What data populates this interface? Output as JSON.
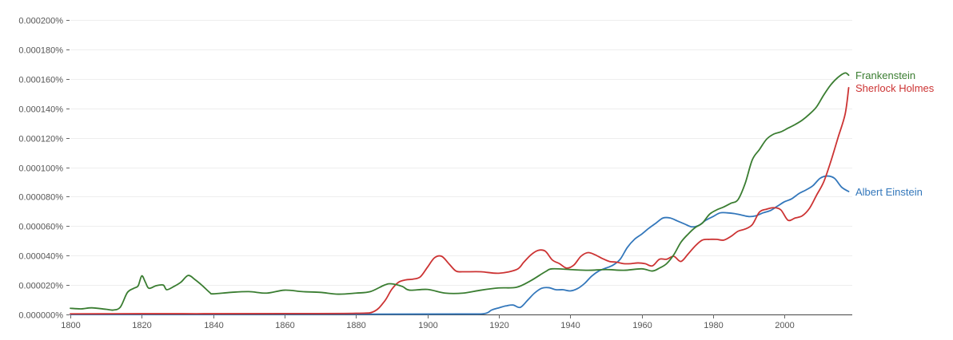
{
  "chart_data": {
    "type": "line",
    "title": "",
    "xlabel": "",
    "ylabel": "",
    "xlim": [
      1800,
      2019
    ],
    "ylim": [
      0,
      0.0002
    ],
    "grid": true,
    "legend": "line-end labels",
    "y_ticks": [
      0,
      2e-05,
      4e-05,
      6e-05,
      8e-05,
      0.0001,
      0.00012,
      0.00014,
      0.00016,
      0.00018,
      0.0002
    ],
    "y_tick_labels": [
      "0.000000%",
      "0.000020%",
      "0.000040%",
      "0.000060%",
      "0.000080%",
      "0.000100%",
      "0.000120%",
      "0.000140%",
      "0.000160%",
      "0.000180%",
      "0.000200%"
    ],
    "x_ticks": [
      1800,
      1820,
      1840,
      1860,
      1880,
      1900,
      1920,
      1940,
      1960,
      1980,
      2000
    ],
    "x_tick_labels": [
      "1800",
      "1820",
      "1840",
      "1860",
      "1880",
      "1900",
      "1920",
      "1940",
      "1960",
      "1980",
      "2000"
    ],
    "series": [
      {
        "name": "Frankenstein",
        "color": "#3a7d31",
        "x": [
          1800,
          1803,
          1806,
          1810,
          1812,
          1814,
          1816,
          1818,
          1819,
          1820,
          1821,
          1822,
          1824,
          1826,
          1827,
          1829,
          1831,
          1833,
          1835,
          1837,
          1839,
          1840,
          1845,
          1850,
          1855,
          1860,
          1865,
          1870,
          1875,
          1880,
          1884,
          1888,
          1890,
          1893,
          1895,
          1900,
          1905,
          1910,
          1915,
          1920,
          1925,
          1929,
          1933,
          1935,
          1940,
          1945,
          1950,
          1955,
          1960,
          1963,
          1965,
          1967,
          1969,
          1971,
          1973,
          1975,
          1977,
          1979,
          1981,
          1983,
          1985,
          1987,
          1989,
          1991,
          1993,
          1995,
          1997,
          1999,
          2001,
          2003,
          2005,
          2007,
          2009,
          2011,
          2013,
          2015,
          2017,
          2018
        ],
        "y": [
          4.2e-06,
          3.8e-06,
          4.5e-06,
          3.5e-06,
          3e-06,
          5e-06,
          1.5e-05,
          1.8e-05,
          1.95e-05,
          2.62e-05,
          2.2e-05,
          1.78e-05,
          1.95e-05,
          2e-05,
          1.68e-05,
          1.9e-05,
          2.2e-05,
          2.65e-05,
          2.35e-05,
          1.95e-05,
          1.5e-05,
          1.4e-05,
          1.5e-05,
          1.55e-05,
          1.45e-05,
          1.65e-05,
          1.55e-05,
          1.5e-05,
          1.38e-05,
          1.45e-05,
          1.55e-05,
          2e-05,
          2.08e-05,
          1.9e-05,
          1.65e-05,
          1.7e-05,
          1.45e-05,
          1.45e-05,
          1.65e-05,
          1.8e-05,
          1.85e-05,
          2.3e-05,
          2.9e-05,
          3.1e-05,
          3.05e-05,
          3e-05,
          3.05e-05,
          3e-05,
          3.1e-05,
          2.95e-05,
          3.15e-05,
          3.45e-05,
          4.05e-05,
          4.9e-05,
          5.45e-05,
          5.9e-05,
          6.2e-05,
          6.8e-05,
          7.1e-05,
          7.3e-05,
          7.55e-05,
          7.8e-05,
          8.9e-05,
          0.000105,
          0.000112,
          0.000119,
          0.0001225,
          0.000124,
          0.0001265,
          0.000129,
          0.000132,
          0.000136,
          0.000141,
          0.000149,
          0.000156,
          0.000161,
          0.000164,
          0.0001625
        ]
      },
      {
        "name": "Sherlock Holmes",
        "color": "#cc3333",
        "x": [
          1800,
          1820,
          1840,
          1860,
          1880,
          1885,
          1888,
          1890,
          1892,
          1894,
          1896,
          1898,
          1900,
          1902,
          1904,
          1906,
          1908,
          1910,
          1915,
          1920,
          1925,
          1927,
          1929,
          1931,
          1933,
          1935,
          1937,
          1939,
          1941,
          1943,
          1945,
          1947,
          1949,
          1951,
          1953,
          1955,
          1957,
          1959,
          1961,
          1963,
          1965,
          1967,
          1969,
          1971,
          1973,
          1975,
          1977,
          1979,
          1981,
          1983,
          1985,
          1987,
          1989,
          1991,
          1993,
          1995,
          1997,
          1999,
          2001,
          2003,
          2005,
          2007,
          2009,
          2011,
          2013,
          2015,
          2017,
          2018
        ],
        "y": [
          4e-07,
          5e-07,
          5e-07,
          6e-07,
          8e-07,
          2e-06,
          9e-06,
          1.7e-05,
          2.2e-05,
          2.35e-05,
          2.4e-05,
          2.55e-05,
          3.2e-05,
          3.85e-05,
          3.95e-05,
          3.45e-05,
          2.95e-05,
          2.9e-05,
          2.9e-05,
          2.8e-05,
          3.05e-05,
          3.55e-05,
          4.05e-05,
          4.35e-05,
          4.3e-05,
          3.7e-05,
          3.45e-05,
          3.15e-05,
          3.35e-05,
          3.95e-05,
          4.2e-05,
          4.05e-05,
          3.8e-05,
          3.6e-05,
          3.55e-05,
          3.45e-05,
          3.45e-05,
          3.5e-05,
          3.45e-05,
          3.3e-05,
          3.75e-05,
          3.75e-05,
          3.95e-05,
          3.6e-05,
          4.1e-05,
          4.65e-05,
          5.05e-05,
          5.1e-05,
          5.1e-05,
          5.05e-05,
          5.3e-05,
          5.65e-05,
          5.8e-05,
          6.1e-05,
          6.95e-05,
          7.15e-05,
          7.25e-05,
          7.1e-05,
          6.4e-05,
          6.55e-05,
          6.7e-05,
          7.2e-05,
          8.1e-05,
          9e-05,
          0.000104,
          0.00012,
          0.000136,
          0.000154
        ]
      },
      {
        "name": "Albert Einstein",
        "color": "#3377bb",
        "x": [
          1800,
          1840,
          1880,
          1910,
          1916,
          1918,
          1920,
          1922,
          1924,
          1926,
          1928,
          1930,
          1932,
          1934,
          1936,
          1938,
          1940,
          1942,
          1944,
          1946,
          1948,
          1950,
          1952,
          1954,
          1956,
          1958,
          1960,
          1962,
          1964,
          1966,
          1968,
          1970,
          1972,
          1974,
          1976,
          1978,
          1980,
          1982,
          1984,
          1986,
          1988,
          1990,
          1992,
          1994,
          1996,
          1998,
          2000,
          2002,
          2004,
          2006,
          2008,
          2010,
          2012,
          2014,
          2016,
          2018
        ],
        "y": [
          0,
          1e-07,
          2e-07,
          3e-07,
          6e-07,
          3e-06,
          4.5e-06,
          5.8e-06,
          6.4e-06,
          4.8e-06,
          9.5e-06,
          1.45e-05,
          1.78e-05,
          1.82e-05,
          1.68e-05,
          1.68e-05,
          1.6e-05,
          1.75e-05,
          2.1e-05,
          2.6e-05,
          2.95e-05,
          3.15e-05,
          3.35e-05,
          3.75e-05,
          4.55e-05,
          5.1e-05,
          5.45e-05,
          5.85e-05,
          6.2e-05,
          6.55e-05,
          6.55e-05,
          6.35e-05,
          6.15e-05,
          5.95e-05,
          6.05e-05,
          6.4e-05,
          6.65e-05,
          6.9e-05,
          6.9e-05,
          6.85e-05,
          6.75e-05,
          6.65e-05,
          6.7e-05,
          6.9e-05,
          7.05e-05,
          7.35e-05,
          7.65e-05,
          7.85e-05,
          8.2e-05,
          8.45e-05,
          8.75e-05,
          9.25e-05,
          9.4e-05,
          9.25e-05,
          8.65e-05,
          8.35e-05
        ]
      }
    ]
  }
}
